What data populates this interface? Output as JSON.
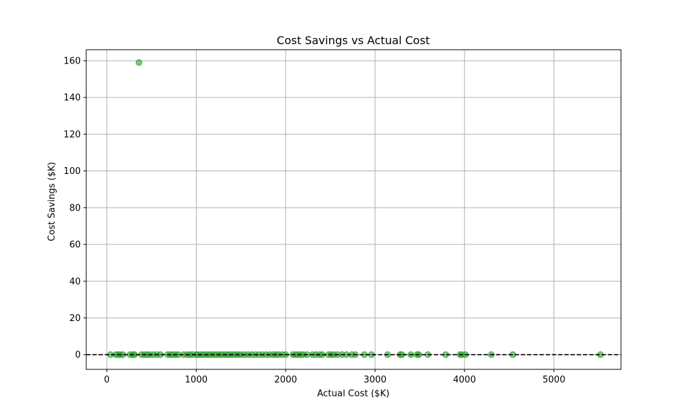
{
  "chart_data": {
    "type": "scatter",
    "title": "Cost Savings vs Actual Cost",
    "xlabel": "Actual Cost ($K)",
    "ylabel": "Cost Savings ($K)",
    "xlim": [
      -230,
      5750
    ],
    "ylim": [
      -8,
      166
    ],
    "xticks": [
      0,
      1000,
      2000,
      3000,
      4000,
      5000
    ],
    "yticks": [
      0,
      20,
      40,
      60,
      80,
      100,
      120,
      140,
      160
    ],
    "grid": true,
    "reference_line": {
      "y": 0,
      "style": "dashed",
      "color": "#000000"
    },
    "point_color": "#2ca02c",
    "x": [
      40,
      100,
      130,
      150,
      180,
      260,
      290,
      310,
      360,
      390,
      420,
      450,
      480,
      520,
      560,
      600,
      680,
      710,
      740,
      770,
      800,
      860,
      900,
      930,
      960,
      1000,
      1020,
      1050,
      1080,
      1110,
      1140,
      1170,
      1200,
      1230,
      1260,
      1290,
      1320,
      1350,
      1380,
      1410,
      1440,
      1470,
      1500,
      1540,
      1580,
      1620,
      1660,
      1700,
      1740,
      1780,
      1820,
      1860,
      1890,
      1920,
      1960,
      2000,
      2080,
      2110,
      2140,
      2170,
      2200,
      2240,
      2300,
      2340,
      2380,
      2410,
      2480,
      2510,
      2540,
      2580,
      2630,
      2680,
      2740,
      2780,
      2880,
      2960,
      3140,
      3280,
      3300,
      3400,
      3470,
      3490,
      3590,
      3790,
      3950,
      3970,
      4010,
      4300,
      4540,
      5520
    ],
    "y": [
      0,
      0,
      0,
      0,
      0,
      0,
      0,
      0,
      159,
      0,
      0,
      0,
      0,
      0,
      0,
      0,
      0,
      0,
      0,
      0,
      0,
      0,
      0,
      0,
      0,
      0,
      0,
      0,
      0,
      0,
      0,
      0,
      0,
      0,
      0,
      0,
      0,
      0,
      0,
      0,
      0,
      0,
      0,
      0,
      0,
      0,
      0,
      0,
      0,
      0,
      0,
      0,
      0,
      0,
      0,
      0,
      0,
      0,
      0,
      0,
      0,
      0,
      0,
      0,
      0,
      0,
      0,
      0,
      0,
      0,
      0,
      0,
      0,
      0,
      0,
      0,
      0,
      0,
      0,
      0,
      0,
      0,
      0,
      0,
      0,
      0,
      0,
      0,
      0,
      0
    ]
  }
}
